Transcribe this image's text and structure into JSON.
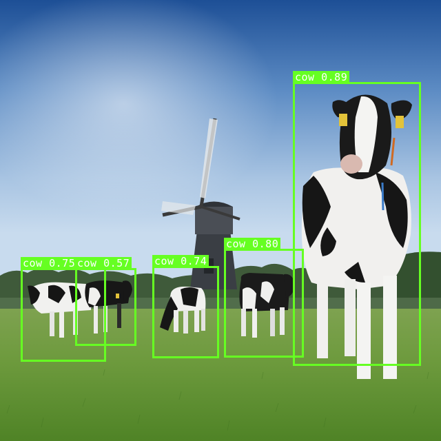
{
  "detections": [
    {
      "label": "cow 0.89",
      "color": "#66ff22"
    },
    {
      "label": "cow 0.80",
      "color": "#66ff22"
    },
    {
      "label": "cow 0.74",
      "color": "#66ff22"
    },
    {
      "label": "cow 0.75",
      "color": "#66ff22"
    },
    {
      "label": "cow 0.57",
      "color": "#66ff22"
    }
  ]
}
